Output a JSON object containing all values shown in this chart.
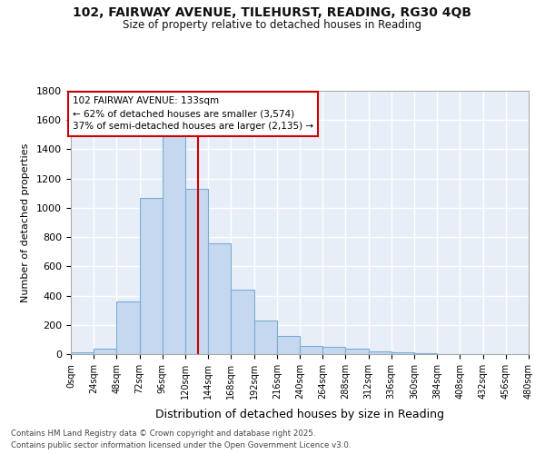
{
  "title1": "102, FAIRWAY AVENUE, TILEHURST, READING, RG30 4QB",
  "title2": "Size of property relative to detached houses in Reading",
  "xlabel": "Distribution of detached houses by size in Reading",
  "ylabel": "Number of detached properties",
  "bar_color": "#c5d8f0",
  "bar_edge_color": "#7aadd4",
  "axes_bg_color": "#e8eef8",
  "fig_bg_color": "#ffffff",
  "grid_color": "#ffffff",
  "vline_color": "#cc0000",
  "vline_x": 133,
  "annotation_title": "102 FAIRWAY AVENUE: 133sqm",
  "annotation_line1": "← 62% of detached houses are smaller (3,574)",
  "annotation_line2": "37% of semi-detached houses are larger (2,135) →",
  "annotation_box_color": "#cc0000",
  "bins": [
    0,
    24,
    48,
    72,
    96,
    120,
    144,
    168,
    192,
    216,
    240,
    264,
    288,
    312,
    336,
    360,
    384,
    408,
    432,
    456,
    480
  ],
  "bin_labels": [
    "0sqm",
    "24sqm",
    "48sqm",
    "72sqm",
    "96sqm",
    "120sqm",
    "144sqm",
    "168sqm",
    "192sqm",
    "216sqm",
    "240sqm",
    "264sqm",
    "288sqm",
    "312sqm",
    "336sqm",
    "360sqm",
    "384sqm",
    "408sqm",
    "432sqm",
    "456sqm",
    "480sqm"
  ],
  "heights": [
    10,
    35,
    360,
    1070,
    1490,
    1130,
    760,
    440,
    230,
    125,
    55,
    48,
    35,
    20,
    15,
    5,
    3,
    2,
    1,
    1,
    0
  ],
  "ylim": [
    0,
    1800
  ],
  "yticks": [
    0,
    200,
    400,
    600,
    800,
    1000,
    1200,
    1400,
    1600,
    1800
  ],
  "footer1": "Contains HM Land Registry data © Crown copyright and database right 2025.",
  "footer2": "Contains public sector information licensed under the Open Government Licence v3.0."
}
